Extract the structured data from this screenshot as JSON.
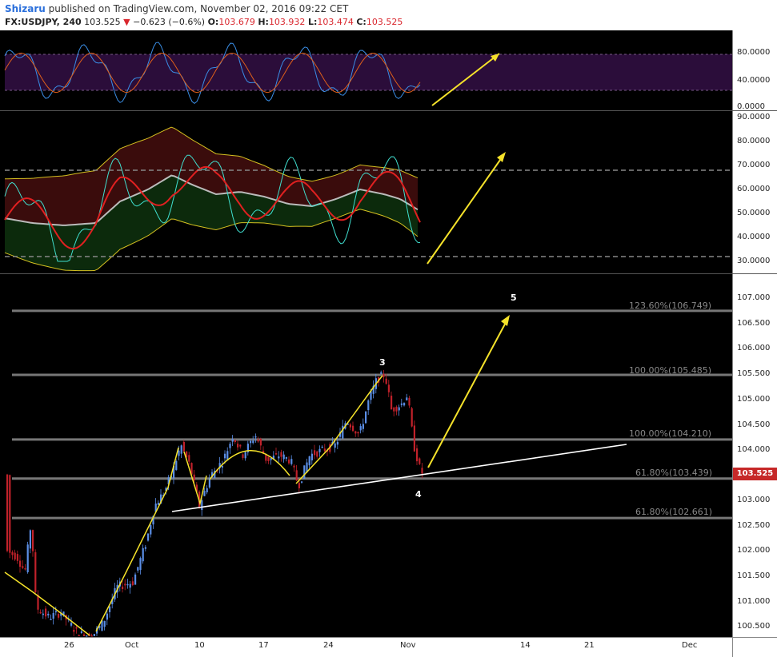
{
  "header": {
    "author": "Shizaru",
    "published_text": "published on TradingView.com, November 02, 2016 09:22 CET",
    "symbol": "FX:USDJPY, 240",
    "last": "103.525",
    "change": "−0.623 (−0.6%)",
    "open_label": "O:",
    "open": "103.679",
    "high_label": "H:",
    "high": "103.932",
    "low_label": "L:",
    "low": "103.474",
    "close_label": "C:",
    "close": "103.525"
  },
  "rsi_axis": [
    "80.0000",
    "40.0000",
    "0.0000"
  ],
  "osc_axis": [
    "90.0000",
    "80.0000",
    "70.0000",
    "60.0000",
    "50.0000",
    "40.0000",
    "30.0000"
  ],
  "price_axis": [
    "107.000",
    "106.500",
    "106.000",
    "105.500",
    "105.000",
    "104.500",
    "104.000",
    "103.000",
    "102.500",
    "102.000",
    "101.500",
    "101.000",
    "100.500"
  ],
  "current_price": "103.525",
  "fib_levels": [
    {
      "label": "123.60%(106.749)",
      "value": 106.749
    },
    {
      "label": "100.00%(105.485)",
      "value": 105.485
    },
    {
      "label": "100.00%(104.210)",
      "value": 104.21
    },
    {
      "label": "61.80%(103.439)",
      "value": 103.439
    },
    {
      "label": "61.80%(102.661)",
      "value": 102.661
    }
  ],
  "wave_labels": {
    "w3": "3",
    "w4": "4",
    "w5": "5"
  },
  "x_axis": [
    "26",
    "Oct",
    "10",
    "17",
    "24",
    "Nov",
    "14",
    "21",
    "Dec"
  ],
  "colors": {
    "rsi_bg": "#2b0d3a",
    "up_candle": "#5b8ee6",
    "down_candle": "#c0212a",
    "arrow": "#f5e22a",
    "fib_line": "#777777",
    "badge": "#c62828"
  }
}
